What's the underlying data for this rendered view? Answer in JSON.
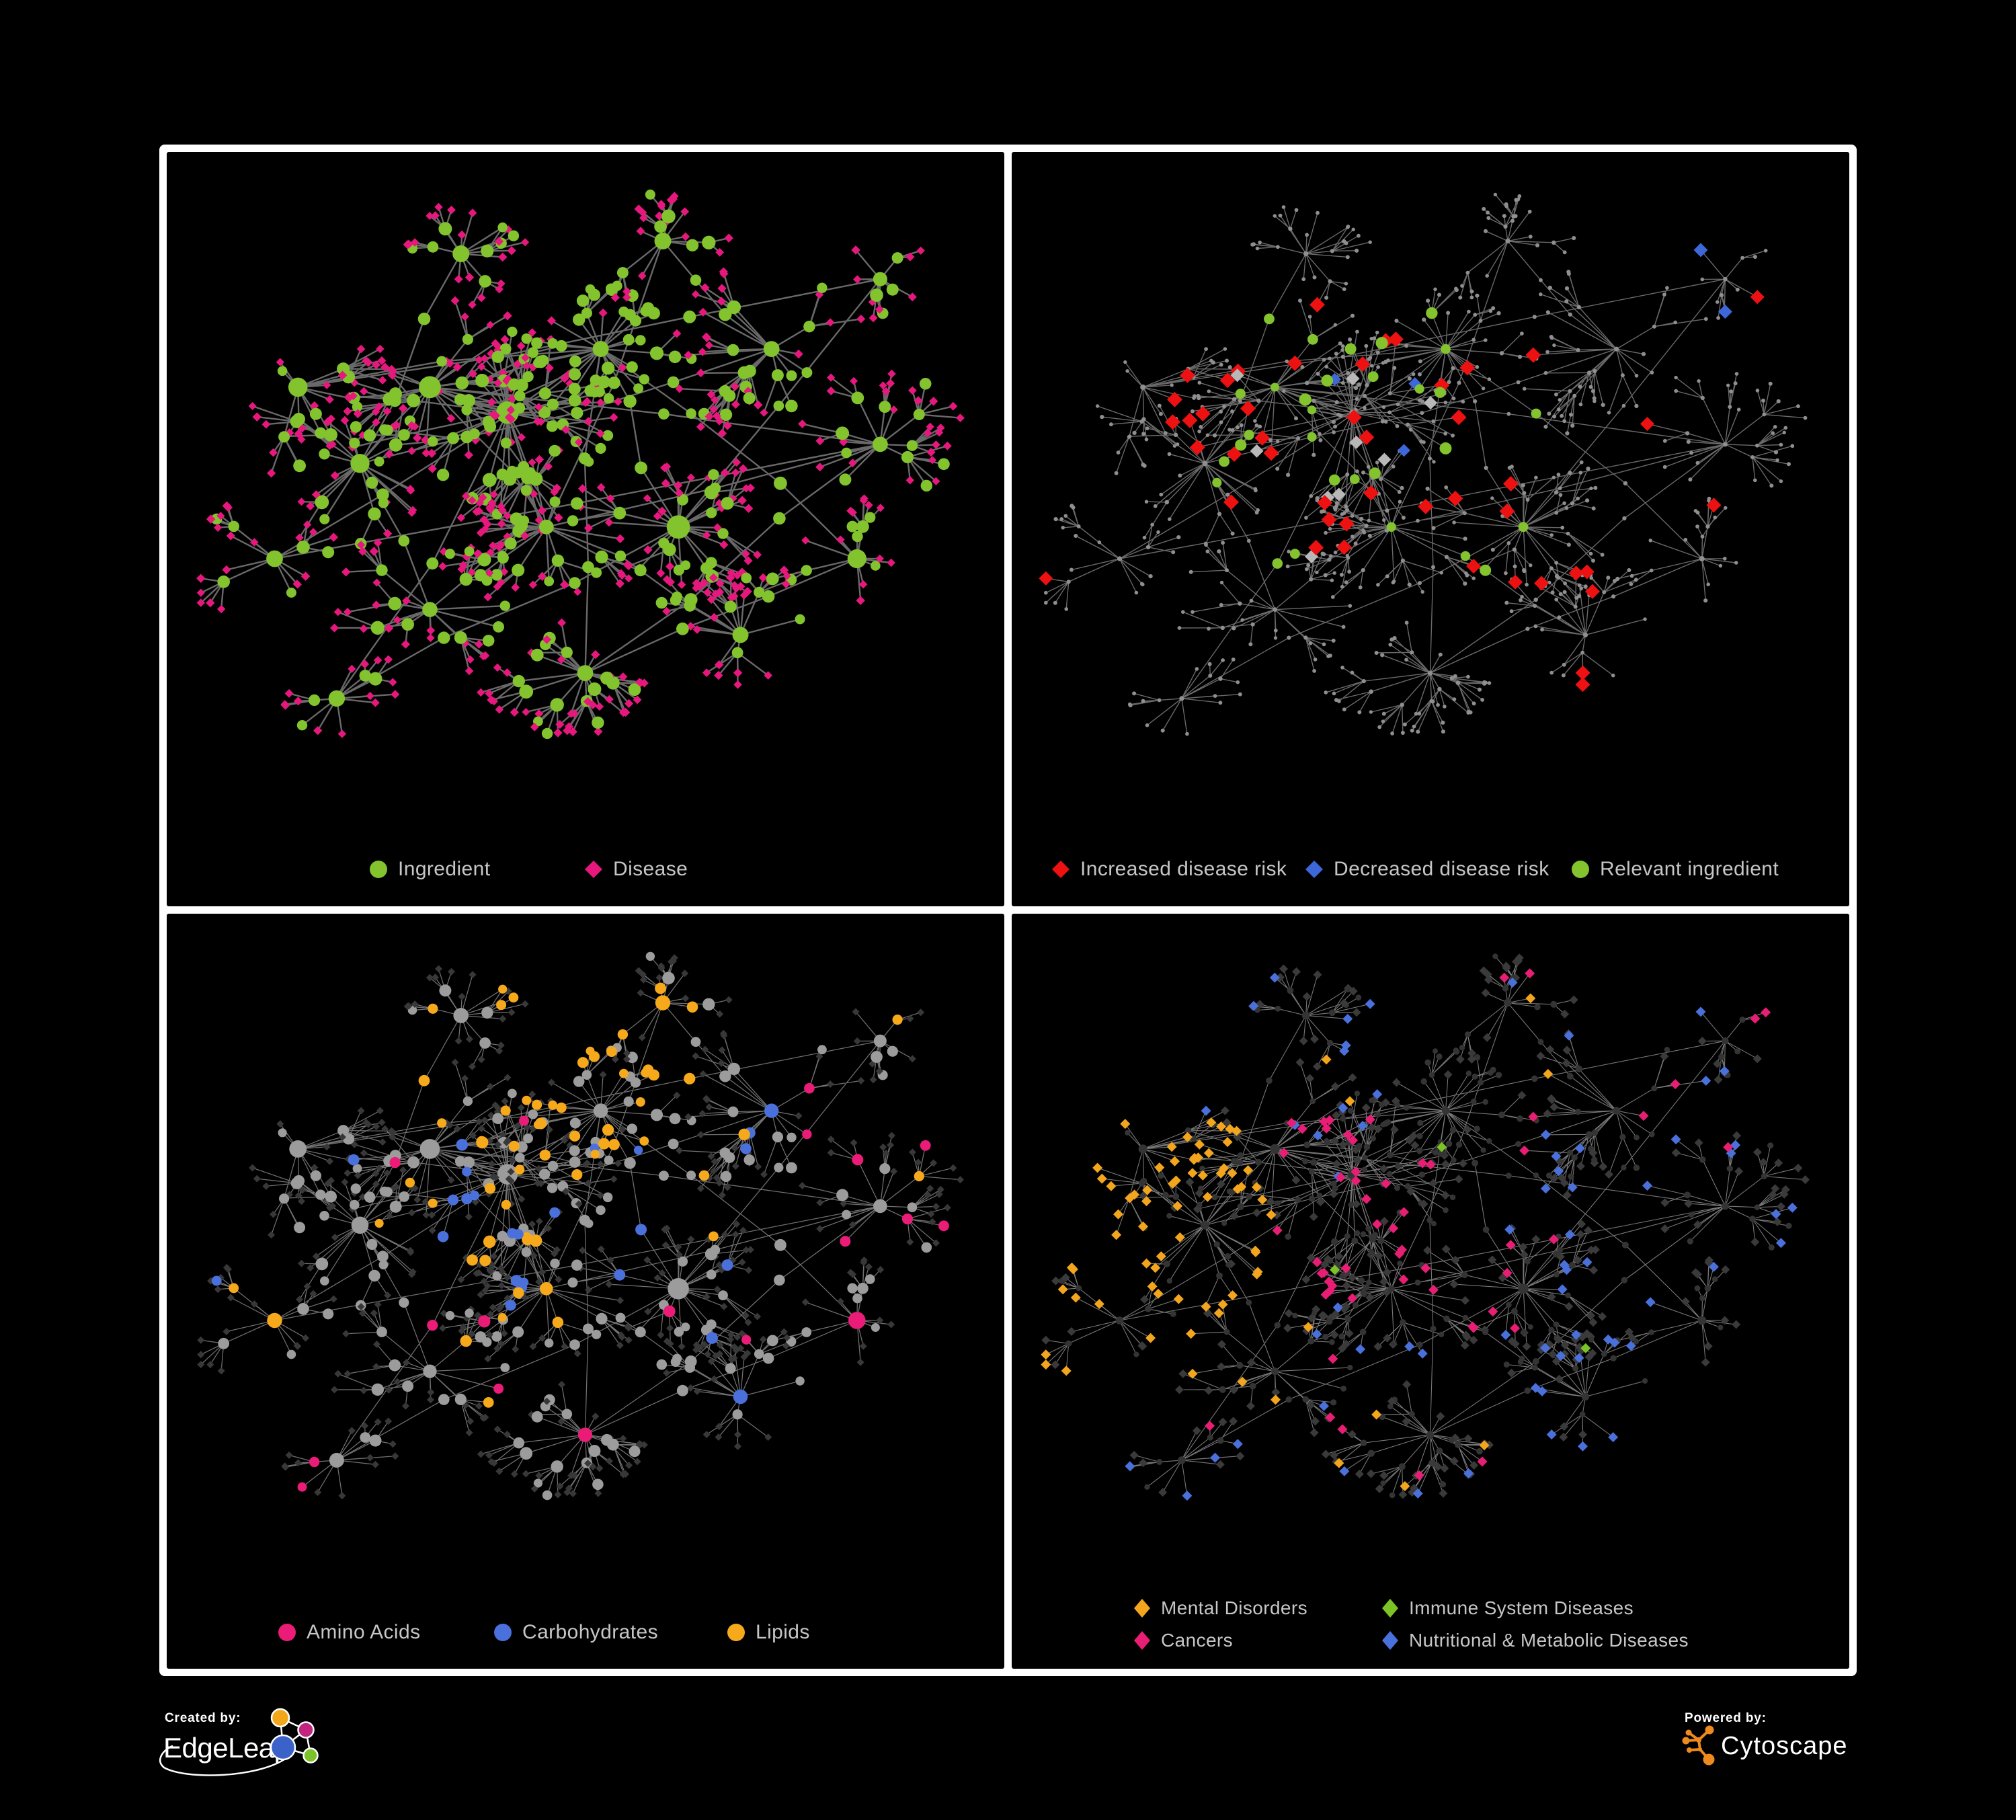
{
  "figure": {
    "background": "#000000",
    "frame_color": "#ffffff",
    "legend_text_color": "#C6C6C6"
  },
  "panels": [
    {
      "name": "ingredient-disease-network",
      "legend": [
        {
          "shape": "circle",
          "color": "#83C32D",
          "label": "Ingredient"
        },
        {
          "shape": "diamond",
          "color": "#E6187D",
          "label": "Disease"
        }
      ]
    },
    {
      "name": "disease-risk-network",
      "legend": [
        {
          "shape": "diamond",
          "color": "#EE1111",
          "label": "Increased disease risk"
        },
        {
          "shape": "diamond",
          "color": "#3E68DA",
          "label": "Decreased disease risk"
        },
        {
          "shape": "circle",
          "color": "#83C32D",
          "label": "Relevant ingredient"
        }
      ]
    },
    {
      "name": "nutrient-class-network",
      "legend": [
        {
          "shape": "circle",
          "color": "#EB1C78",
          "label": "Amino Acids"
        },
        {
          "shape": "circle",
          "color": "#4A70DC",
          "label": "Carbohydrates"
        },
        {
          "shape": "circle",
          "color": "#F6A91B",
          "label": "Lipids"
        }
      ]
    },
    {
      "name": "disease-class-network",
      "legend": [
        {
          "shape": "diamond",
          "color": "#F2A51D",
          "label": "Mental Disorders"
        },
        {
          "shape": "diamond",
          "color": "#7CC426",
          "label": "Immune System Diseases"
        },
        {
          "shape": "diamond",
          "color": "#E81E74",
          "label": "Cancers"
        },
        {
          "shape": "diamond",
          "color": "#4A70DC",
          "label": "Nutritional & Metabolic Diseases"
        }
      ]
    }
  ],
  "network_styles": [
    {
      "edge_color": "#696969",
      "edge_width": 2.4,
      "edge_opacity": 1,
      "ingredient_color": "#83C32D",
      "disease_color": "#E6187D"
    },
    {
      "edge_color": "#7B7B7B",
      "edge_width": 1.4,
      "edge_opacity": 0.85,
      "dim_node_color": "#8F8F8F",
      "increased_color": "#EE1111",
      "decreased_color": "#3E68DA",
      "neutral_color": "#B8B8B8",
      "relevant_color": "#83C32D"
    },
    {
      "edge_color": "#8D8D8D",
      "edge_width": 1.25,
      "edge_opacity": 0.8,
      "circle_color": "#9C9C9C",
      "diamond_color": "#383838",
      "amino_color": "#EB1C78",
      "carb_color": "#4A70DC",
      "lipid_color": "#F6A91B"
    },
    {
      "edge_color": "#9F9F9F",
      "edge_width": 1.1,
      "edge_opacity": 0.75,
      "circle_color": "#343434",
      "diamond_color": "#3A3A3A",
      "mental_color": "#F2A51D",
      "immune_color": "#7CC426",
      "cancer_color": "#E81E74",
      "nutritional_color": "#4A70DC"
    }
  ],
  "footer": {
    "created_by_label": "Created by:",
    "created_by_brand": "EdgeLeap",
    "powered_by_label": "Powered by:",
    "powered_by_brand": "Cytoscape",
    "edgeleap_logo_colors": [
      "#F2A71B",
      "#C4247E",
      "#3A62C8",
      "#7CC32A"
    ],
    "cytoscape_logo_color": "#EF8B1E"
  }
}
